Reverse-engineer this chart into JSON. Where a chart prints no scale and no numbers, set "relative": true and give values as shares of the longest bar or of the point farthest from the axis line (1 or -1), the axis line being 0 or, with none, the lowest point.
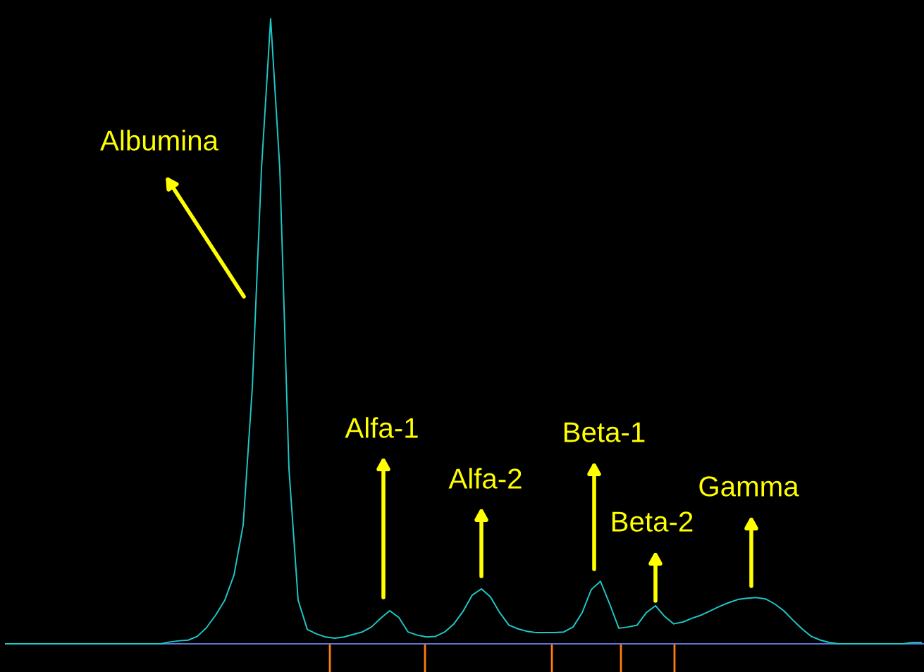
{
  "chart_data": {
    "type": "line",
    "relative": true,
    "categories": [
      null,
      null,
      null,
      null,
      null,
      null,
      null,
      null,
      null,
      null,
      null,
      null,
      null,
      null,
      null,
      null,
      null,
      null,
      null,
      null,
      null,
      null,
      null,
      null,
      null,
      null,
      null,
      null,
      null,
      null,
      null,
      null,
      null,
      null,
      null,
      null,
      null,
      null,
      null,
      null,
      null,
      null,
      null,
      null,
      null,
      null,
      null,
      null,
      null,
      null,
      null,
      null,
      null,
      null,
      null,
      null,
      null,
      null,
      null,
      null,
      null,
      null,
      null,
      null,
      null,
      null,
      null,
      null,
      null,
      null,
      null,
      null,
      null,
      null,
      null,
      null,
      null,
      null,
      null,
      null,
      null,
      null,
      null,
      null,
      null,
      null,
      null,
      null,
      null,
      null,
      null,
      null,
      null,
      null,
      null,
      null,
      null,
      null,
      null,
      null,
      null
    ],
    "series": [
      {
        "color": "#1ec8c8",
        "values": [
          0,
          0,
          0,
          0,
          0,
          0,
          0,
          0,
          0,
          0,
          0,
          0,
          0,
          0,
          0,
          0,
          0,
          0,
          0.003,
          0.005,
          0.006,
          0.012,
          0.026,
          0.046,
          0.07,
          0.11,
          0.19,
          0.41,
          0.76,
          1.0,
          0.76,
          0.28,
          0.07,
          0.023,
          0.016,
          0.011,
          0.009,
          0.011,
          0.015,
          0.019,
          0.027,
          0.041,
          0.053,
          0.042,
          0.019,
          0.014,
          0.011,
          0.012,
          0.019,
          0.032,
          0.052,
          0.078,
          0.088,
          0.075,
          0.05,
          0.03,
          0.024,
          0.02,
          0.018,
          0.018,
          0.018,
          0.019,
          0.027,
          0.05,
          0.087,
          0.1,
          0.064,
          0.025,
          0.027,
          0.03,
          0.05,
          0.061,
          0.044,
          0.032,
          0.035,
          0.041,
          0.046,
          0.053,
          0.06,
          0.066,
          0.071,
          0.073,
          0.074,
          0.072,
          0.064,
          0.053,
          0.038,
          0.024,
          0.012,
          0.006,
          0.002,
          0,
          0,
          0,
          0,
          0,
          0,
          0,
          0,
          0.002,
          0.002
        ]
      }
    ],
    "annotations": [
      "Albumina",
      "Alfa-1",
      "Alfa-2",
      "Beta-1",
      "Beta-2",
      "Gamma"
    ]
  }
}
